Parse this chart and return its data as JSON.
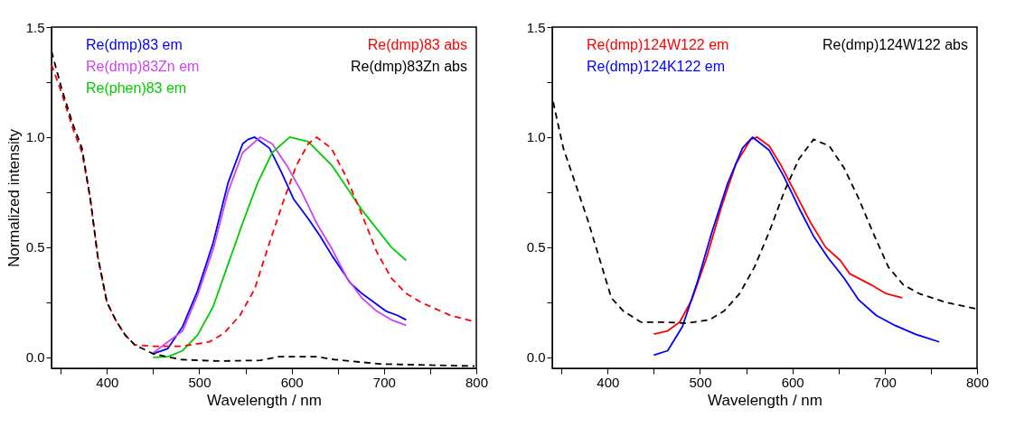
{
  "chart_data": [
    {
      "type": "line",
      "xlabel": "Wavelength / nm",
      "ylabel": "Normalized intensity",
      "xlim": [
        340,
        800
      ],
      "ylim": [
        -0.05,
        1.5
      ],
      "xticks": [
        {
          "value": 350,
          "label": null
        },
        400,
        {
          "value": 450,
          "label": null
        },
        500,
        {
          "value": 550,
          "label": null
        },
        600,
        {
          "value": 650,
          "label": null
        },
        700,
        {
          "value": 750,
          "label": null
        },
        800
      ],
      "yticks": [
        {
          "value": 0,
          "label": "0.0"
        },
        {
          "value": 0.25,
          "label": null
        },
        {
          "value": 0.5,
          "label": "0.5"
        },
        {
          "value": 0.75,
          "label": null
        },
        {
          "value": 1,
          "label": "1.0"
        },
        {
          "value": 1.25,
          "label": null
        },
        {
          "value": 1.5,
          "label": "1.5"
        }
      ],
      "grid": false,
      "marker": "none",
      "series": [
        {
          "name": "Re(dmp)83 em",
          "color": "#0000ff",
          "line_style": "solid",
          "x": [
            450,
            466,
            482,
            498,
            515,
            531,
            547,
            553,
            560,
            576,
            589,
            602,
            618,
            631,
            644,
            657,
            663,
            676,
            689,
            702,
            715,
            724
          ],
          "values": [
            0.016,
            0.04,
            0.14,
            0.3,
            0.52,
            0.79,
            0.97,
            0.99,
            1.0,
            0.95,
            0.84,
            0.72,
            0.63,
            0.55,
            0.46,
            0.38,
            0.34,
            0.29,
            0.25,
            0.21,
            0.19,
            0.17
          ]
        },
        {
          "name": "Re(dmp)83Zn em",
          "color": "#cc44ee",
          "line_style": "solid",
          "x": [
            450,
            482,
            498,
            515,
            531,
            547,
            566,
            579,
            595,
            611,
            627,
            644,
            660,
            676,
            692,
            708,
            724
          ],
          "values": [
            0.02,
            0.12,
            0.28,
            0.49,
            0.75,
            0.93,
            1.0,
            0.97,
            0.87,
            0.75,
            0.61,
            0.49,
            0.36,
            0.27,
            0.21,
            0.17,
            0.145
          ]
        },
        {
          "name": "Re(phen)83 em",
          "color": "#00cc00",
          "line_style": "solid",
          "x": [
            450,
            466,
            482,
            498,
            515,
            531,
            547,
            563,
            579,
            598,
            618,
            644,
            676,
            708,
            724
          ],
          "values": [
            0.0,
            0.003,
            0.03,
            0.1,
            0.23,
            0.42,
            0.61,
            0.79,
            0.93,
            1.0,
            0.98,
            0.87,
            0.67,
            0.5,
            0.44
          ]
        },
        {
          "name": "Re(dmp)83 abs",
          "color": "#ff0000",
          "line_style": "dashed",
          "x": [
            340,
            351,
            363,
            373,
            382,
            390,
            400,
            410,
            420,
            430,
            450,
            480,
            511,
            527,
            544,
            560,
            576,
            592,
            605,
            618,
            627,
            643,
            659,
            676,
            692,
            708,
            724,
            740,
            772,
            800
          ],
          "values": [
            1.33,
            1.2,
            1.04,
            0.93,
            0.72,
            0.46,
            0.25,
            0.165,
            0.1,
            0.057,
            0.05,
            0.05,
            0.07,
            0.11,
            0.19,
            0.31,
            0.52,
            0.72,
            0.87,
            0.97,
            1.0,
            0.95,
            0.82,
            0.65,
            0.48,
            0.36,
            0.29,
            0.25,
            0.19,
            0.16
          ]
        },
        {
          "name": "Re(dmp)83Zn abs",
          "color": "#000000",
          "line_style": "dashed",
          "x": [
            340,
            351,
            363,
            373,
            382,
            390,
            400,
            410,
            420,
            430,
            450,
            480,
            520,
            566,
            586,
            627,
            646,
            695,
            798
          ],
          "values": [
            1.39,
            1.22,
            1.06,
            0.95,
            0.72,
            0.46,
            0.25,
            0.165,
            0.1,
            0.057,
            0.016,
            -0.01,
            -0.017,
            -0.014,
            0.003,
            0.003,
            -0.01,
            -0.03,
            -0.04
          ]
        }
      ]
    },
    {
      "type": "line",
      "xlabel": "Wavelength / nm",
      "xlim": [
        340,
        800
      ],
      "ylim": [
        -0.05,
        1.5
      ],
      "xticks": [
        {
          "value": 350,
          "label": null
        },
        400,
        {
          "value": 450,
          "label": null
        },
        500,
        {
          "value": 550,
          "label": null
        },
        600,
        {
          "value": 650,
          "label": null
        },
        700,
        {
          "value": 750,
          "label": null
        },
        800
      ],
      "yticks": [
        {
          "value": 0,
          "label": "0.0"
        },
        {
          "value": 0.25,
          "label": null
        },
        {
          "value": 0.5,
          "label": "0.5"
        },
        {
          "value": 0.75,
          "label": null
        },
        {
          "value": 1,
          "label": "1.0"
        },
        {
          "value": 1.25,
          "label": null
        },
        {
          "value": 1.5,
          "label": "1.5"
        }
      ],
      "grid": false,
      "marker": "none",
      "series": [
        {
          "name": "Re(dmp)124W122 em",
          "color": "#ff0000",
          "line_style": "solid",
          "x": [
            450,
            465,
            478,
            491,
            507,
            523,
            539,
            555,
            562,
            575,
            588,
            604,
            620,
            636,
            652,
            662,
            685,
            701,
            719
          ],
          "values": [
            0.105,
            0.12,
            0.16,
            0.26,
            0.45,
            0.68,
            0.88,
            0.99,
            1.0,
            0.96,
            0.87,
            0.74,
            0.61,
            0.5,
            0.44,
            0.38,
            0.33,
            0.29,
            0.27
          ]
        },
        {
          "name": "Re(dmp)124K122 em",
          "color": "#0000ff",
          "line_style": "solid",
          "x": [
            450,
            465,
            481,
            497,
            513,
            530,
            546,
            557,
            575,
            591,
            607,
            623,
            639,
            656,
            672,
            691,
            711,
            733,
            759
          ],
          "values": [
            0.01,
            0.03,
            0.14,
            0.34,
            0.57,
            0.79,
            0.95,
            1.0,
            0.94,
            0.82,
            0.68,
            0.55,
            0.45,
            0.36,
            0.26,
            0.19,
            0.145,
            0.105,
            0.07
          ]
        },
        {
          "name": "Re(dmp)124W122 abs",
          "color": "#000000",
          "line_style": "dashed",
          "x": [
            341,
            352,
            365,
            378,
            391,
            404,
            417,
            436,
            459,
            485,
            510,
            526,
            543,
            559,
            575,
            591,
            607,
            623,
            640,
            656,
            672,
            688,
            704,
            720,
            737,
            766,
            799
          ],
          "values": [
            1.16,
            0.95,
            0.79,
            0.63,
            0.45,
            0.27,
            0.21,
            0.16,
            0.16,
            0.155,
            0.17,
            0.21,
            0.29,
            0.41,
            0.57,
            0.75,
            0.9,
            0.99,
            0.96,
            0.86,
            0.72,
            0.56,
            0.41,
            0.33,
            0.29,
            0.25,
            0.22
          ]
        }
      ]
    }
  ]
}
